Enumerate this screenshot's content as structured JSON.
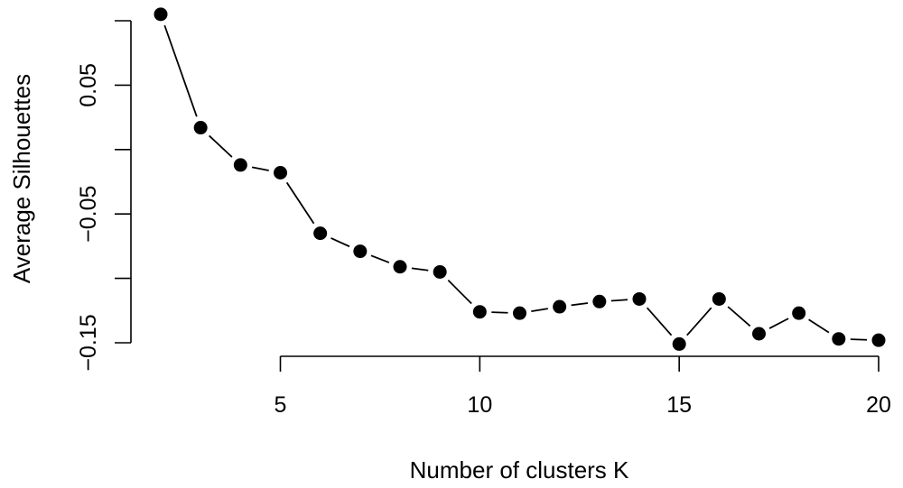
{
  "chart_data": {
    "type": "line",
    "title": "",
    "xlabel": "Number of clusters K",
    "ylabel": "Average Silhouettes",
    "xlim": [
      2,
      20
    ],
    "ylim": [
      -0.15,
      0.105
    ],
    "x_ticks": [
      5,
      10,
      15,
      20
    ],
    "x_tick_labels": [
      "5",
      "10",
      "15",
      "20"
    ],
    "y_ticks": [
      -0.15,
      -0.1,
      -0.05,
      0,
      0.05,
      0.1
    ],
    "y_tick_labels": [
      "−0.15",
      "",
      "−0.05",
      "",
      "0.05",
      ""
    ],
    "grid": false,
    "legend": null,
    "series": [
      {
        "x": [
          2,
          3,
          4,
          5,
          6,
          7,
          8,
          9,
          10,
          11,
          12,
          13,
          14,
          15,
          16,
          17,
          18,
          19,
          20
        ],
        "values": [
          0.105,
          0.017,
          -0.012,
          -0.018,
          -0.065,
          -0.079,
          -0.091,
          -0.095,
          -0.126,
          -0.127,
          -0.122,
          -0.118,
          -0.116,
          -0.151,
          -0.116,
          -0.143,
          -0.127,
          -0.147,
          -0.148
        ]
      }
    ]
  }
}
